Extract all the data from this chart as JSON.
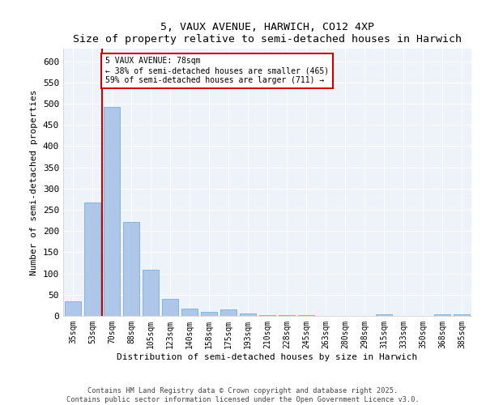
{
  "title1": "5, VAUX AVENUE, HARWICH, CO12 4XP",
  "title2": "Size of property relative to semi-detached houses in Harwich",
  "xlabel": "Distribution of semi-detached houses by size in Harwich",
  "ylabel": "Number of semi-detached properties",
  "categories": [
    "35sqm",
    "53sqm",
    "70sqm",
    "88sqm",
    "105sqm",
    "123sqm",
    "140sqm",
    "158sqm",
    "175sqm",
    "193sqm",
    "210sqm",
    "228sqm",
    "245sqm",
    "263sqm",
    "280sqm",
    "298sqm",
    "315sqm",
    "333sqm",
    "350sqm",
    "368sqm",
    "385sqm"
  ],
  "values": [
    35,
    268,
    493,
    222,
    108,
    40,
    17,
    10,
    16,
    6,
    2,
    1,
    1,
    0,
    0,
    0,
    3,
    0,
    0,
    3,
    3
  ],
  "bar_color": "#aec6e8",
  "bar_edge_color": "#7aafd4",
  "vline_x": 1.5,
  "vline_color": "#cc0000",
  "annotation_text": "5 VAUX AVENUE: 78sqm\n← 38% of semi-detached houses are smaller (465)\n59% of semi-detached houses are larger (711) →",
  "annotation_box_color": "#cc0000",
  "ylim": [
    0,
    630
  ],
  "yticks": [
    0,
    50,
    100,
    150,
    200,
    250,
    300,
    350,
    400,
    450,
    500,
    550,
    600
  ],
  "bg_color": "#eef2f9",
  "footer": "Contains HM Land Registry data © Crown copyright and database right 2025.\nContains public sector information licensed under the Open Government Licence v3.0."
}
